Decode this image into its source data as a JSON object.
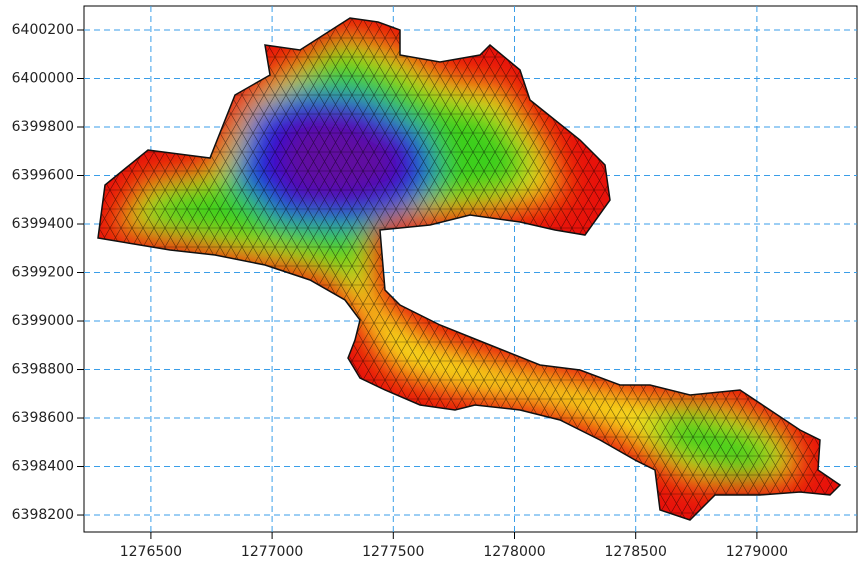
{
  "chart_data": {
    "type": "mesh",
    "xlim": [
      1276224,
      1279413
    ],
    "ylim": [
      6398130,
      6400299
    ],
    "xticks": [
      1276500,
      1277000,
      1277500,
      1278000,
      1278500,
      1279000
    ],
    "yticks": [
      6398200,
      6398400,
      6398600,
      6398800,
      6399000,
      6399200,
      6399400,
      6399600,
      6399800,
      6400000,
      6400200
    ],
    "grid": true
  }
}
